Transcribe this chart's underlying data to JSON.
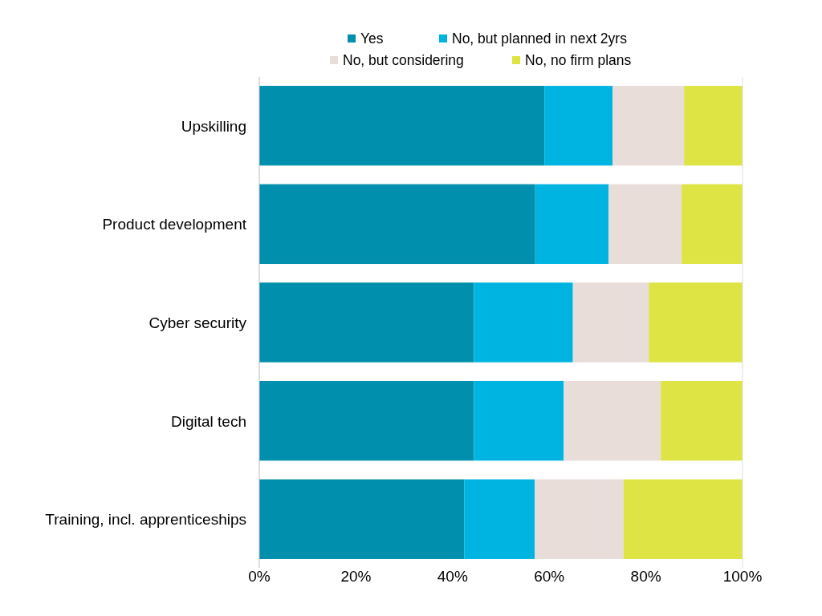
{
  "chart_data": {
    "type": "bar",
    "orientation": "horizontal",
    "stacked": true,
    "legend": "top",
    "categories": [
      "Upskilling",
      "Product development",
      "Cyber security",
      "Digital tech",
      "Training, incl. apprenticeships"
    ],
    "series": [
      {
        "name": "Yes",
        "color": "#008fac",
        "values": [
          59.0,
          57.1,
          44.4,
          44.4,
          42.4
        ]
      },
      {
        "name": "No, but planned in next 2yrs",
        "color": "#00b4e1",
        "values": [
          14.1,
          15.2,
          20.5,
          18.6,
          14.6
        ]
      },
      {
        "name": "No, but considering",
        "color": "#e8ddd8",
        "values": [
          14.8,
          15.1,
          15.7,
          20.1,
          18.4
        ]
      },
      {
        "name": "No, no firm plans",
        "color": "#dde444",
        "values": [
          12.1,
          12.6,
          19.4,
          16.9,
          24.6
        ]
      }
    ],
    "xlim": [
      0,
      100
    ],
    "xticks": [
      {
        "value": 0,
        "label": "0%"
      },
      {
        "value": 20,
        "label": "20%"
      },
      {
        "value": 40,
        "label": "40%"
      },
      {
        "value": 60,
        "label": "60%"
      },
      {
        "value": 80,
        "label": "80%"
      },
      {
        "value": 100,
        "label": "100%"
      }
    ]
  }
}
